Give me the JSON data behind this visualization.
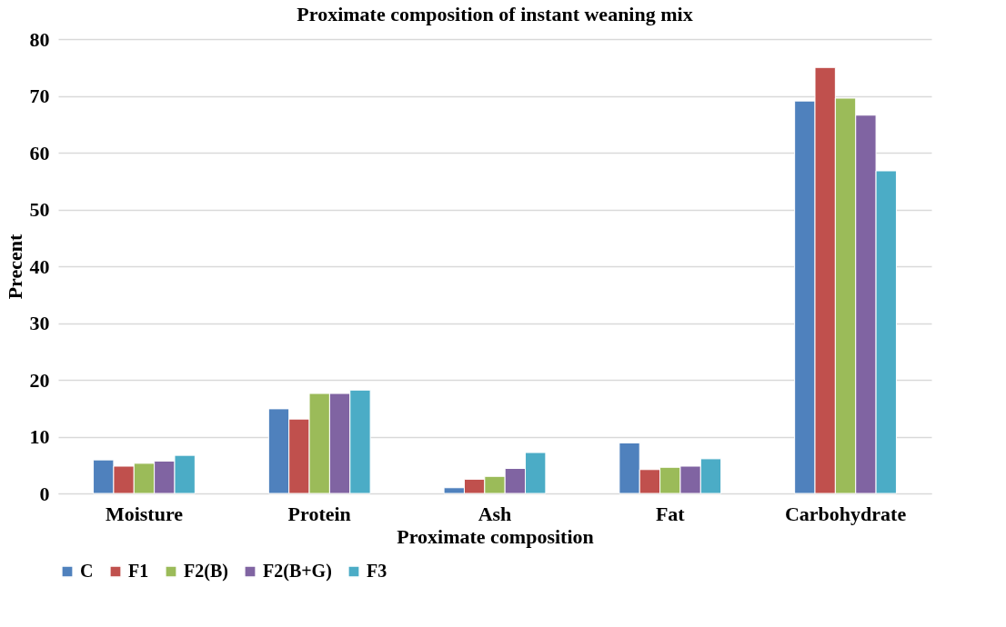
{
  "chart_data": {
    "type": "bar",
    "title": "Proximate composition of instant weaning mix",
    "xlabel": "Proximate composition",
    "ylabel": "Precent",
    "categories": [
      "Moisture",
      "Protein",
      "Ash",
      "Fat",
      "Carbohydrate"
    ],
    "series": [
      {
        "name": "C",
        "color": "#4f81bd",
        "values": [
          5.9,
          14.9,
          1.0,
          8.9,
          69.1
        ]
      },
      {
        "name": "F1",
        "color": "#c0504d",
        "values": [
          4.8,
          13.1,
          2.5,
          4.2,
          75.0
        ]
      },
      {
        "name": "F2(B)",
        "color": "#9bbb59",
        "values": [
          5.3,
          17.6,
          3.0,
          4.6,
          69.6
        ]
      },
      {
        "name": "F2(B+G)",
        "color": "#8064a2",
        "values": [
          5.7,
          17.6,
          4.4,
          4.8,
          66.6
        ]
      },
      {
        "name": "F3",
        "color": "#4bacc6",
        "values": [
          6.7,
          18.2,
          7.2,
          6.1,
          56.8
        ]
      }
    ],
    "ylim": [
      0,
      80
    ],
    "yticks": [
      0,
      10,
      20,
      30,
      40,
      50,
      60,
      70,
      80
    ],
    "grid": "y",
    "legend": "bottom"
  }
}
